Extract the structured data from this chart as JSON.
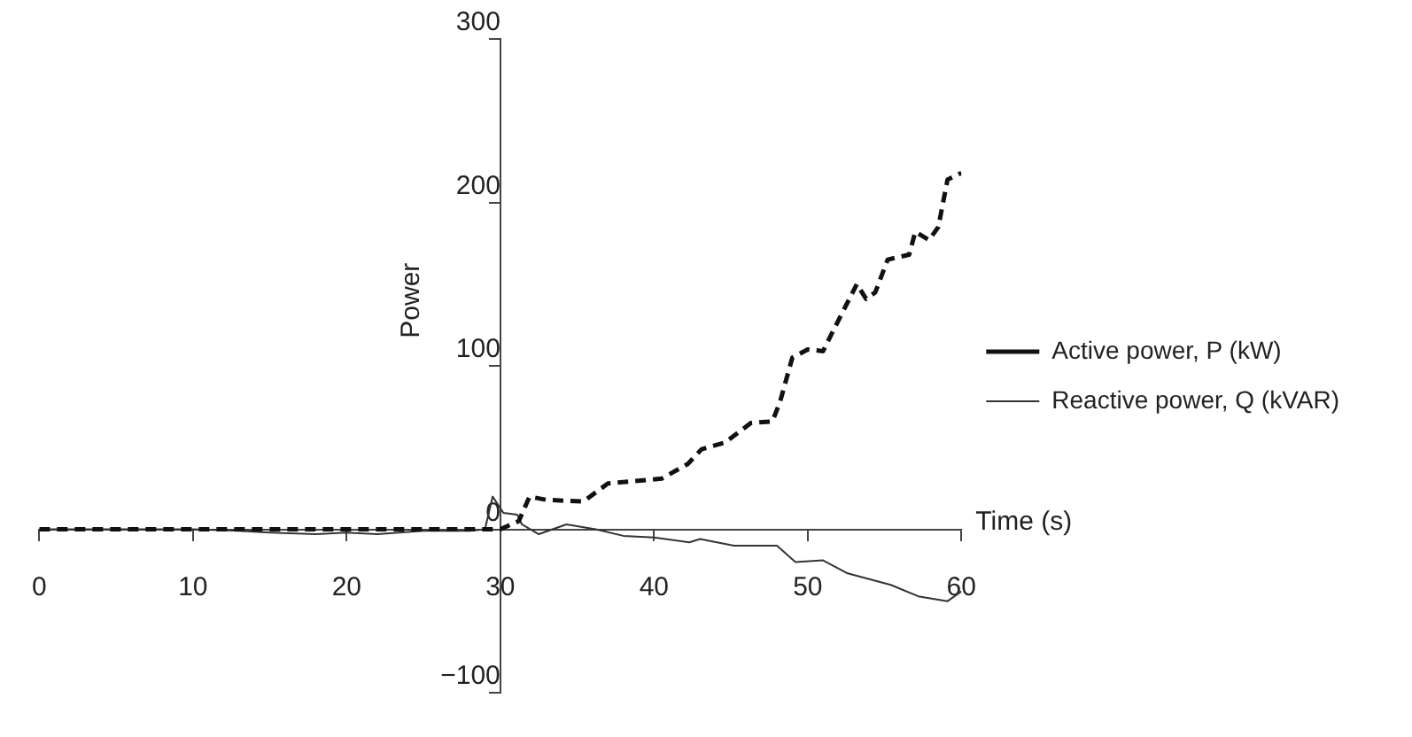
{
  "chart_data": {
    "type": "line",
    "xlabel": "Time (s)",
    "ylabel": "Power",
    "xlim": [
      0,
      60
    ],
    "ylim": [
      -100,
      300
    ],
    "xticks": [
      0,
      10,
      20,
      30,
      40,
      50,
      60
    ],
    "yticks": [
      -100,
      0,
      100,
      200,
      300
    ],
    "grid": false,
    "legend": "right",
    "marker": "none",
    "series": [
      {
        "name": "Active power, P (kW)",
        "color": "#111111",
        "line_style": "dashed",
        "x": [
          0,
          10,
          20,
          28,
          30,
          31.2,
          31.9,
          33,
          35.4,
          37,
          40.5,
          42.2,
          43.1,
          44.6,
          46.3,
          47.7,
          48.2,
          49,
          50,
          51,
          51.9,
          53.2,
          53.8,
          54.4,
          55.2,
          56.6,
          57,
          57.9,
          58.5,
          59.1,
          60
        ],
        "values": [
          0,
          0,
          0,
          0,
          0,
          5,
          20,
          18,
          17,
          28,
          31,
          40,
          49,
          53,
          65,
          66,
          78,
          105,
          110,
          109,
          126,
          150,
          141,
          145,
          165,
          168,
          182,
          177,
          185,
          214,
          218
        ]
      },
      {
        "name": "Reactive power, Q (kVAR)",
        "color": "#333333",
        "line_style": "solid",
        "x": [
          0,
          10,
          13,
          15,
          18,
          20,
          22,
          25,
          28,
          29,
          29.5,
          30.2,
          31.1,
          31.4,
          32.5,
          34.3,
          36.2,
          38,
          40,
          42.3,
          43,
          45.2,
          48,
          49.2,
          51,
          52.6,
          55.4,
          57.2,
          59.1,
          60
        ],
        "values": [
          0,
          0,
          -1,
          -2,
          -3,
          -2,
          -3,
          -1,
          -1,
          0,
          20,
          10,
          9,
          3,
          -3,
          3,
          0,
          -4,
          -5,
          -8,
          -6,
          -10,
          -10,
          -20,
          -19,
          -27,
          -34,
          -41,
          -44,
          -38
        ]
      }
    ]
  }
}
